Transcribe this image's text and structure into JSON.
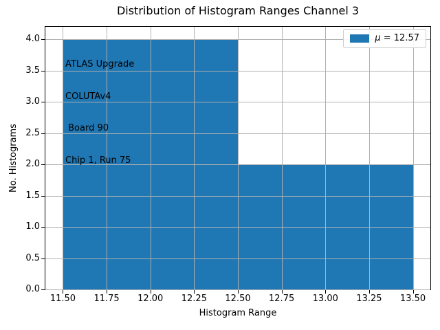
{
  "chart_data": {
    "type": "bar",
    "subtype": "histogram",
    "title": "Distribution of Histogram Ranges Channel 3",
    "xlabel": "Histogram Range",
    "ylabel": "No. Histograms",
    "bin_edges": [
      11.5,
      12.5,
      13.5
    ],
    "counts": [
      4,
      2
    ],
    "mean": 12.57,
    "xlim": [
      11.4,
      13.6
    ],
    "ylim": [
      0,
      4.2
    ],
    "xticks": {
      "values": [
        11.5,
        11.75,
        12.0,
        12.25,
        12.5,
        12.75,
        13.0,
        13.25,
        13.5
      ],
      "labels": [
        "11.50",
        "11.75",
        "12.00",
        "12.25",
        "12.50",
        "12.75",
        "13.00",
        "13.25",
        "13.50"
      ]
    },
    "yticks": {
      "values": [
        0,
        0.5,
        1.0,
        1.5,
        2.0,
        2.5,
        3.0,
        3.5,
        4.0
      ],
      "labels": [
        "0.0",
        "0.5",
        "1.0",
        "1.5",
        "2.0",
        "2.5",
        "3.0",
        "3.5",
        "4.0"
      ]
    },
    "grid": true,
    "grid_color": "#b0b0b0",
    "bar_color": "#1f77b4",
    "legend": {
      "symbol": "μ",
      "text": " = 12.57",
      "swatch_color": "#1f77b4",
      "position": "upper right"
    },
    "annotation": {
      "lines": [
        "ATLAS Upgrade",
        "COLUTAv4",
        " Board 90",
        "Chip 1, Run 75"
      ]
    }
  }
}
